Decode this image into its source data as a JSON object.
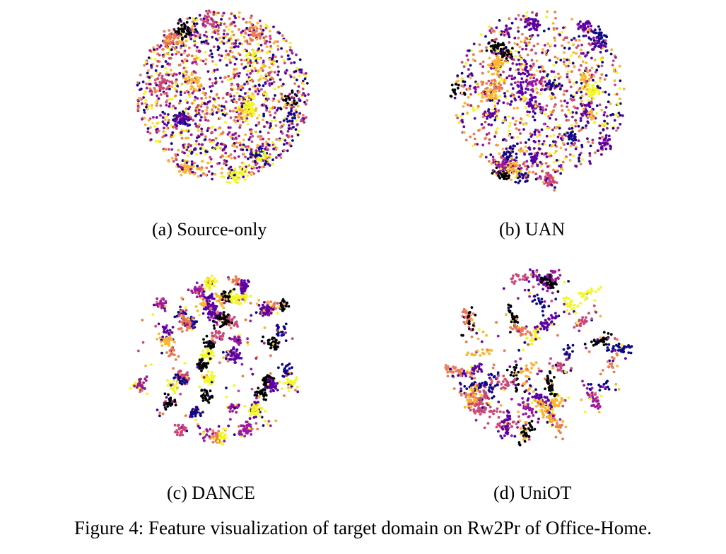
{
  "figure": {
    "caption": "Figure 4: Feature visualization of target domain on Rw2Pr of Office-Home.",
    "palette": [
      "#0d0887",
      "#5c01a6",
      "#9c179e",
      "#cc4778",
      "#ed7953",
      "#fdb42f",
      "#f0f921",
      "#000000"
    ]
  },
  "panels": [
    {
      "caption": "(a) Source-only",
      "spread": "diffuse"
    },
    {
      "caption": "(b) UAN",
      "spread": "mixed"
    },
    {
      "caption": "(c) DANCE",
      "spread": "clustered"
    },
    {
      "caption": "(d) UniOT",
      "spread": "elongated"
    }
  ]
}
